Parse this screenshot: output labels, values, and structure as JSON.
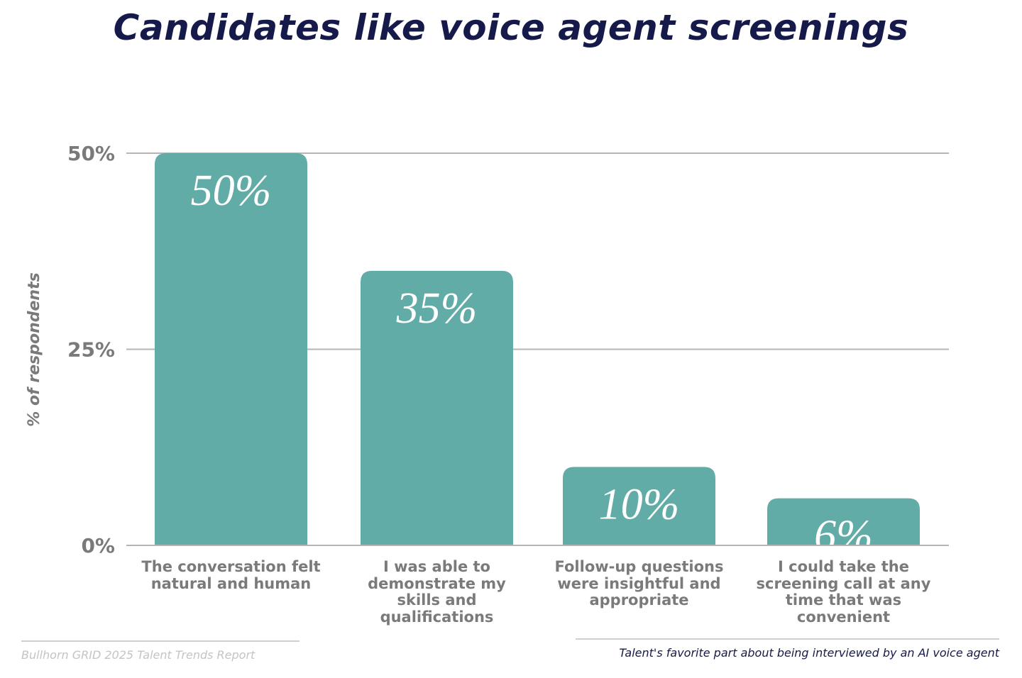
{
  "chart_data": {
    "type": "bar",
    "title": "Candidates like voice agent screenings",
    "ylabel": "% of respondents",
    "xlabel": "",
    "ylim": [
      0,
      50
    ],
    "yticks": [
      "0%",
      "25%",
      "50%"
    ],
    "ytick_values": [
      0,
      25,
      50
    ],
    "grid": true,
    "categories": [
      "The conversation felt natural and human",
      "I was able to demonstrate my skills and qualifications",
      "Follow-up questions were insightful and appropriate",
      "I could take the screening call at any time that was convenient"
    ],
    "values": [
      50,
      35,
      10,
      6
    ],
    "data_labels": [
      "50%",
      "35%",
      "10%",
      "6%"
    ],
    "bar_color": "#62aca7"
  },
  "footer": {
    "source": "Bullhorn GRID 2025 Talent Trends Report",
    "note": "Talent's favorite part about being interviewed by an AI voice agent"
  },
  "colors": {
    "title": "#161a4a",
    "axis_text": "#7a7a7a",
    "grid": "#b5b5b5"
  }
}
